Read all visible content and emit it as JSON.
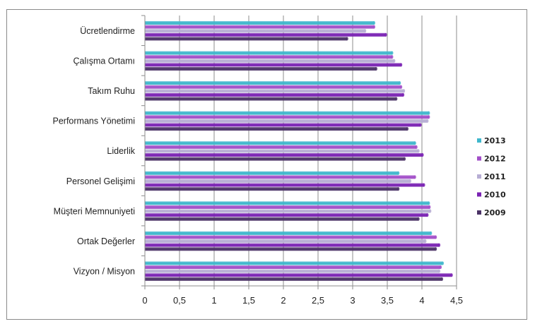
{
  "chart_data": {
    "type": "bar",
    "orientation": "horizontal",
    "title": "",
    "xlabel": "",
    "ylabel": "",
    "xlim": [
      0,
      4.5
    ],
    "x_ticks": [
      "0",
      "0,5",
      "1",
      "1,5",
      "2",
      "2,5",
      "3",
      "3,5",
      "4",
      "4,5"
    ],
    "grid": "vertical major gridlines",
    "legend_position": "right",
    "categories": [
      "Ücretlendirme",
      "Çalışma Ortamı",
      "Takım Ruhu",
      "Performans Yönetimi",
      "Liderlik",
      "Personel Gelişimi",
      "Müşteri Memnuniyeti",
      "Ortak Değerler",
      "Vizyon / Misyon"
    ],
    "series": [
      {
        "name": "2013",
        "color": "#3fb7cc",
        "values": [
          3.31,
          3.57,
          3.68,
          4.1,
          3.9,
          3.66,
          4.1,
          4.13,
          4.3
        ]
      },
      {
        "name": "2012",
        "color": "#a24ec8",
        "values": [
          3.31,
          3.57,
          3.7,
          4.1,
          3.92,
          3.9,
          4.11,
          4.2,
          4.27
        ]
      },
      {
        "name": "2011",
        "color": "#b7aed4",
        "values": [
          3.18,
          3.6,
          3.74,
          4.08,
          3.95,
          3.83,
          4.12,
          4.05,
          4.25
        ]
      },
      {
        "name": "2010",
        "color": "#7a22b3",
        "values": [
          3.48,
          3.7,
          3.73,
          3.98,
          4.01,
          4.03,
          4.08,
          4.25,
          4.43
        ]
      },
      {
        "name": "2009",
        "color": "#4b3266",
        "values": [
          2.92,
          3.34,
          3.63,
          3.79,
          3.75,
          3.66,
          3.95,
          4.2,
          4.29
        ]
      }
    ]
  }
}
